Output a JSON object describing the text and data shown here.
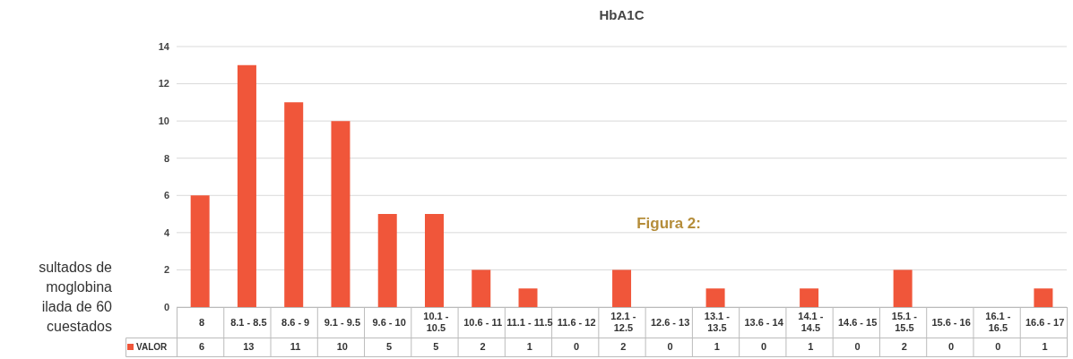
{
  "chart_data": {
    "type": "bar",
    "title": "HbA1C",
    "categories": [
      "8",
      "8.1 - 8.5",
      "8.6 - 9",
      "9.1 - 9.5",
      "9.6 - 10",
      "10.1 - 10.5",
      "10.6 - 11",
      "11.1 - 11.5",
      "11.6 - 12",
      "12.1 - 12.5",
      "12.6 - 13",
      "13.1 - 13.5",
      "13.6 - 14",
      "14.1 - 14.5",
      "14.6 - 15",
      "15.1 - 15.5",
      "15.6 - 16",
      "16.1 - 16.5",
      "16.6 - 17"
    ],
    "series": [
      {
        "name": "VALOR",
        "color": "#f0563a",
        "values": [
          6,
          13,
          11,
          10,
          5,
          5,
          2,
          1,
          0,
          2,
          0,
          1,
          0,
          1,
          0,
          2,
          0,
          0,
          1
        ]
      }
    ],
    "ylim": [
      0,
      14
    ],
    "yticks": [
      0,
      2,
      4,
      6,
      8,
      10,
      12,
      14
    ],
    "grid": "y",
    "data_labels": true,
    "legend": "bottom left",
    "annotations": [
      "Figura 2:",
      "sultados de",
      "moglobina",
      "ilada de 60",
      "cuestados"
    ]
  }
}
